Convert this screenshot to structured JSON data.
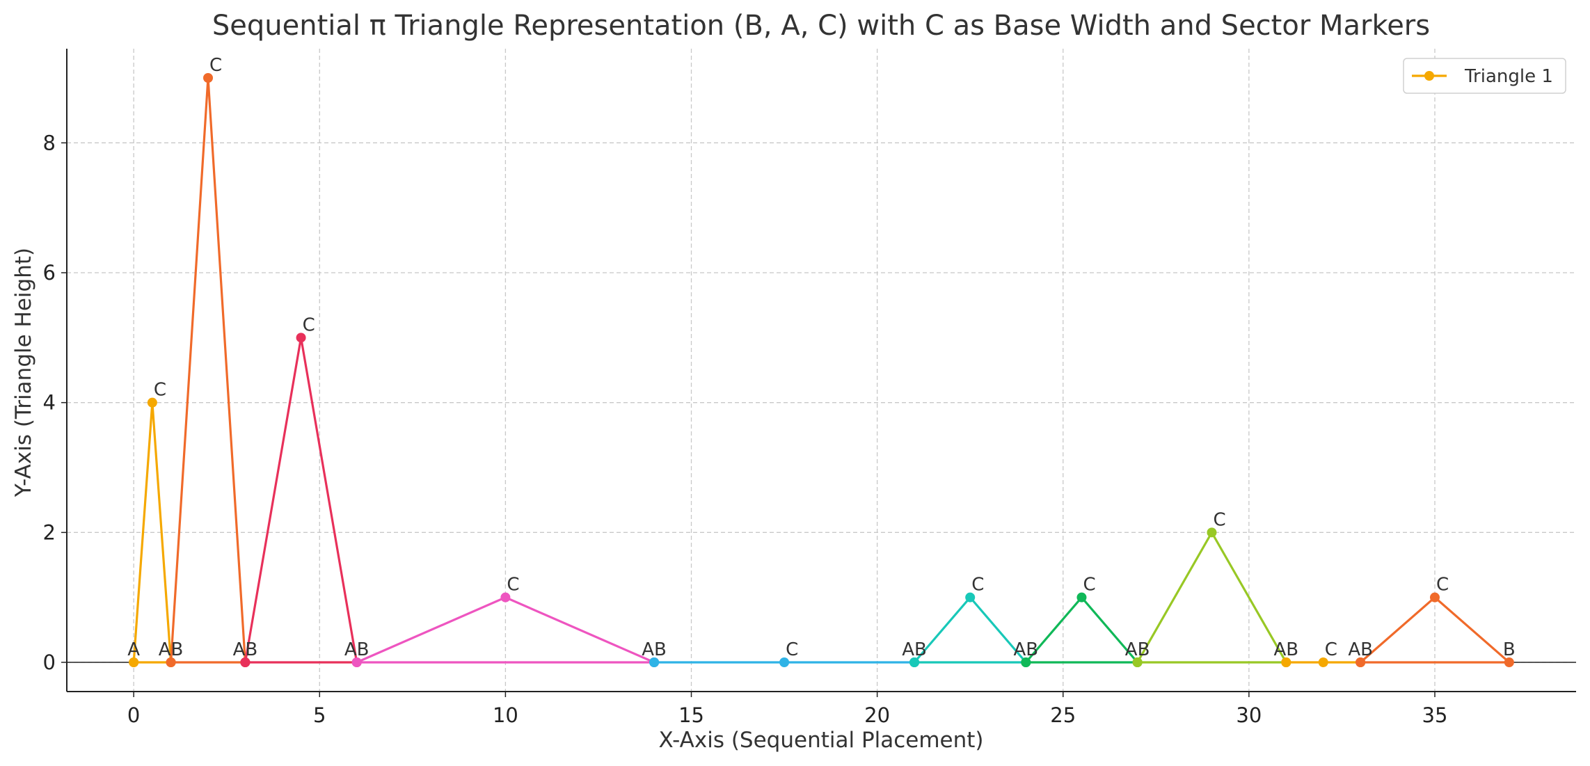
{
  "chart_data": {
    "type": "line",
    "title": "Sequential π Triangle Representation (B, A, C) with C as Base Width and Sector Markers",
    "xlabel": "X-Axis (Sequential Placement)",
    "ylabel": "Y-Axis (Triangle Height)",
    "xlim": [
      -1.8,
      38.8
    ],
    "ylim": [
      -0.45,
      9.45
    ],
    "xticks": [
      0,
      5,
      10,
      15,
      20,
      25,
      30,
      35
    ],
    "yticks": [
      0,
      2,
      4,
      6,
      8
    ],
    "grid": true,
    "legend": {
      "placement": "top-right",
      "entries": [
        "Triangle 1"
      ]
    },
    "series": [
      {
        "name": "Triangle 1",
        "color": "#f5a800",
        "x": [
          0,
          0.5,
          1,
          0
        ],
        "y": [
          0,
          4,
          0,
          0
        ],
        "labels": [
          {
            "x": 0,
            "y": 0,
            "text": "A"
          },
          {
            "x": 0.5,
            "y": 4,
            "text": "C"
          },
          {
            "x": 1,
            "y": 0,
            "text": "AB"
          }
        ]
      },
      {
        "color": "#f06a2a",
        "x": [
          1,
          2,
          3,
          1
        ],
        "y": [
          0,
          9,
          0,
          0
        ],
        "labels": [
          {
            "x": 2,
            "y": 9,
            "text": "C"
          },
          {
            "x": 3,
            "y": 0,
            "text": "AB"
          }
        ]
      },
      {
        "color": "#e8305a",
        "x": [
          3,
          4.5,
          6,
          3
        ],
        "y": [
          0,
          5,
          0,
          0
        ],
        "labels": [
          {
            "x": 4.5,
            "y": 5,
            "text": "C"
          },
          {
            "x": 6,
            "y": 0,
            "text": "AB"
          }
        ]
      },
      {
        "color": "#ee55c0",
        "x": [
          6,
          10,
          14,
          6
        ],
        "y": [
          0,
          1,
          0,
          0
        ],
        "labels": [
          {
            "x": 10,
            "y": 1,
            "text": "C"
          },
          {
            "x": 14,
            "y": 0,
            "text": "AB"
          }
        ]
      },
      {
        "color": "#2fb3e6",
        "x": [
          14,
          17.5,
          21,
          14
        ],
        "y": [
          0,
          0,
          0,
          0
        ],
        "labels": [
          {
            "x": 17.5,
            "y": 0,
            "text": "C"
          },
          {
            "x": 21,
            "y": 0,
            "text": "AB"
          }
        ]
      },
      {
        "color": "#18c8b8",
        "x": [
          21,
          22.5,
          24,
          21
        ],
        "y": [
          0,
          1,
          0,
          0
        ],
        "labels": [
          {
            "x": 22.5,
            "y": 1,
            "text": "C"
          },
          {
            "x": 24,
            "y": 0,
            "text": "AB"
          }
        ]
      },
      {
        "color": "#10b858",
        "x": [
          24,
          25.5,
          27,
          24
        ],
        "y": [
          0,
          1,
          0,
          0
        ],
        "labels": [
          {
            "x": 25.5,
            "y": 1,
            "text": "C"
          },
          {
            "x": 27,
            "y": 0,
            "text": "AB"
          }
        ]
      },
      {
        "color": "#98c825",
        "x": [
          27,
          29,
          31,
          27
        ],
        "y": [
          0,
          2,
          0,
          0
        ],
        "labels": [
          {
            "x": 29,
            "y": 2,
            "text": "C"
          },
          {
            "x": 31,
            "y": 0,
            "text": "AB"
          }
        ]
      },
      {
        "color": "#f5a800",
        "x": [
          31,
          32,
          33,
          31
        ],
        "y": [
          0,
          0,
          0,
          0
        ],
        "labels": [
          {
            "x": 32,
            "y": 0,
            "text": "C"
          },
          {
            "x": 33,
            "y": 0,
            "text": "AB"
          }
        ]
      },
      {
        "color": "#f06a2a",
        "x": [
          33,
          35,
          37,
          33
        ],
        "y": [
          0,
          1,
          0,
          0
        ],
        "labels": [
          {
            "x": 35,
            "y": 1,
            "text": "C"
          },
          {
            "x": 37,
            "y": 0,
            "text": "B"
          }
        ]
      }
    ]
  }
}
